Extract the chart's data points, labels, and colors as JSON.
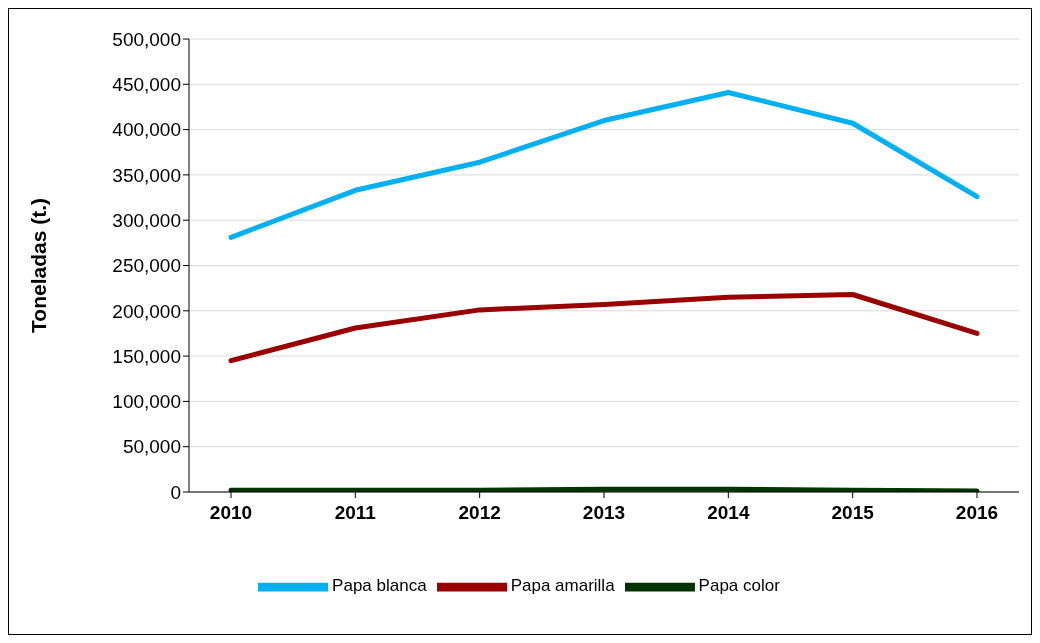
{
  "chart_data": {
    "type": "line",
    "ylabel": "Toneladas (t.)",
    "categories": [
      "2010",
      "2011",
      "2012",
      "2013",
      "2014",
      "2015",
      "2016"
    ],
    "series": [
      {
        "name": "Papa blanca",
        "color": "#00b0f0",
        "values": [
          281000,
          333000,
          364000,
          410000,
          441000,
          407000,
          326000
        ]
      },
      {
        "name": "Papa amarilla",
        "color": "#990000",
        "values": [
          145000,
          181000,
          201000,
          207000,
          215000,
          218000,
          175000
        ]
      },
      {
        "name": "Papa color",
        "color": "#003300",
        "values": [
          2000,
          2000,
          2000,
          3000,
          3000,
          2000,
          1000
        ]
      }
    ],
    "ylim": [
      0,
      500000
    ],
    "yticks": [
      0,
      {
        "value": 50000,
        "label": "50,000"
      },
      {
        "value": 100000,
        "label": "100,000"
      },
      {
        "value": 150000,
        "label": "150,000"
      },
      {
        "value": 200000,
        "label": "200,000"
      },
      {
        "value": 250000,
        "label": "250,000"
      },
      {
        "value": 300000,
        "label": "300,000"
      },
      {
        "value": 350000,
        "label": "350,000"
      },
      {
        "value": 400000,
        "label": "400,000"
      },
      {
        "value": 450000,
        "label": "450,000"
      },
      {
        "value": 500000,
        "label": "500,000"
      }
    ],
    "grid": "y",
    "legend": "bottom",
    "marker": "none",
    "line_style": "solid"
  }
}
